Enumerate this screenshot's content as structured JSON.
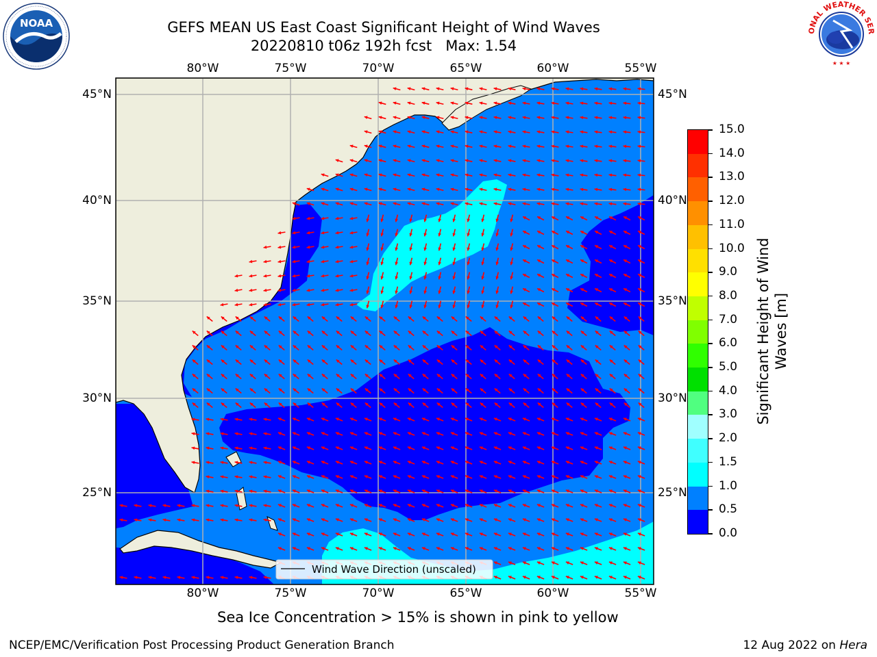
{
  "title": {
    "line1": "GEFS MEAN US East Coast Significant Height of Wind Waves",
    "line2": "20220810 t06z 192h fcst   Max: 1.54"
  },
  "map": {
    "lon_labels": [
      "80°W",
      "75°W",
      "70°W",
      "65°W",
      "60°W",
      "55°W"
    ],
    "lat_labels": [
      "45°N",
      "40°N",
      "35°N",
      "30°N",
      "25°N"
    ],
    "legend_label": "Wind Wave Direction (unscaled)",
    "arrow_color": "#ff0000",
    "land_color": "#eeeedd"
  },
  "colorbar": {
    "label": "Significant Height of Wind Waves [m]",
    "ticks": [
      "0.0",
      "0.5",
      "1.0",
      "1.5",
      "2.0",
      "3.0",
      "4.0",
      "5.0",
      "6.0",
      "7.0",
      "8.0",
      "9.0",
      "10.0",
      "11.0",
      "12.0",
      "13.0",
      "14.0",
      "15.0"
    ],
    "colors": [
      "#0000ff",
      "#0080ff",
      "#00ffff",
      "#40ffff",
      "#a0ffff",
      "#50ff80",
      "#00e000",
      "#30ff00",
      "#80ff00",
      "#c0ff00",
      "#ffff00",
      "#ffe000",
      "#ffc000",
      "#ff9000",
      "#ff6000",
      "#ff3000",
      "#ff0000"
    ]
  },
  "notes": {
    "sea_ice": "Sea Ice Concentration > 15% is shown in pink to yellow",
    "producer": "NCEP/EMC/Verification Post Processing Product Generation Branch",
    "date_prefix": "12 Aug 2022 on ",
    "machine": "Hera"
  },
  "logos": {
    "noaa": "NOAA",
    "nws": "NATIONAL WEATHER SERVICE"
  }
}
